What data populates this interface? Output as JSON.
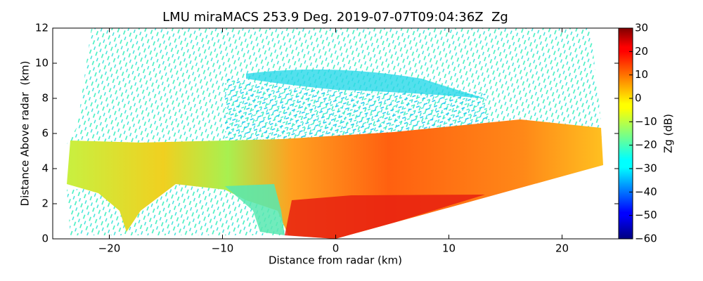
{
  "chart_data": {
    "type": "heatmap",
    "title": "LMU miraMACS 253.9 Deg. 2019-07-07T09:04:36Z  Zg",
    "x_label": "Distance from radar (km)",
    "y_label": "Distance Above radar  (km)",
    "xlim": [
      -25,
      25
    ],
    "xticks": [
      {
        "value": -20,
        "label": "−20"
      },
      {
        "value": -10,
        "label": "−10"
      },
      0,
      10,
      20
    ],
    "ylim": [
      0,
      12
    ],
    "yticks": [
      0,
      2,
      4,
      6,
      8,
      10,
      12
    ],
    "colorbar": {
      "label": "Zg (dB)",
      "colormap": "jet",
      "clim": [
        -60,
        30
      ],
      "ticks": [
        {
          "value": -60,
          "label": "−60"
        },
        {
          "value": -50,
          "label": "−50"
        },
        {
          "value": -40,
          "label": "−40"
        },
        {
          "value": -30,
          "label": "−30"
        },
        {
          "value": -20,
          "label": "−20"
        },
        {
          "value": -10,
          "label": "−10"
        },
        0,
        10,
        20,
        30
      ]
    }
  }
}
